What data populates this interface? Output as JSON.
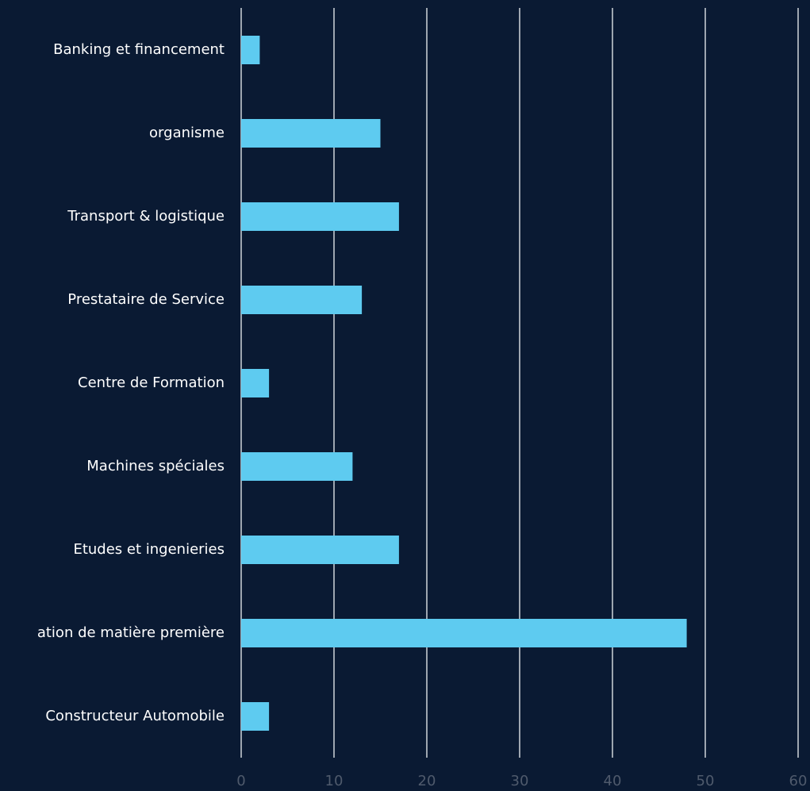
{
  "chart_data": {
    "type": "bar",
    "orientation": "horizontal",
    "categories": [
      "Banking et financement",
      "organisme",
      "Transport & logistique",
      "Prestataire de Service",
      "Centre de Formation",
      "Machines spéciales",
      "Etudes et ingenieries",
      "ation de matière première",
      "Constructeur Automobile"
    ],
    "values": [
      2,
      15,
      17,
      13,
      3,
      12,
      17,
      48,
      3
    ],
    "color": "#5ecbf0",
    "xlim": [
      0,
      60
    ],
    "xticks": [
      0,
      10,
      20,
      30,
      40,
      50,
      60
    ],
    "grid": true
  }
}
